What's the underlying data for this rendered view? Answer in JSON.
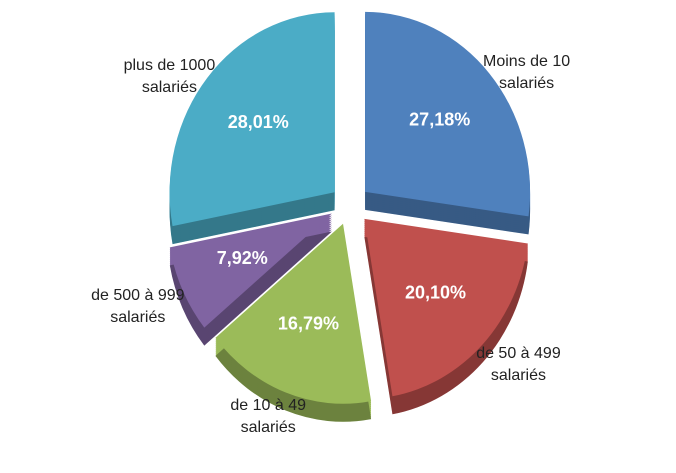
{
  "chart_data": {
    "type": "pie",
    "categories": [
      "Moins de 10\nsalariés",
      "de 50 à 499\nsalariés",
      "de 10 à 49\nsalariés",
      "de 500 à 999\nsalariés",
      "plus de 1000\nsalariés"
    ],
    "values": [
      27.18,
      20.1,
      16.79,
      7.92,
      28.01
    ],
    "value_labels": [
      "27,18%",
      "20,10%",
      "16,79%",
      "7,92%",
      "28,01%"
    ],
    "colors": [
      "#4f81bd",
      "#c0504d",
      "#9bbb59",
      "#8064a2",
      "#4bacc6"
    ]
  }
}
